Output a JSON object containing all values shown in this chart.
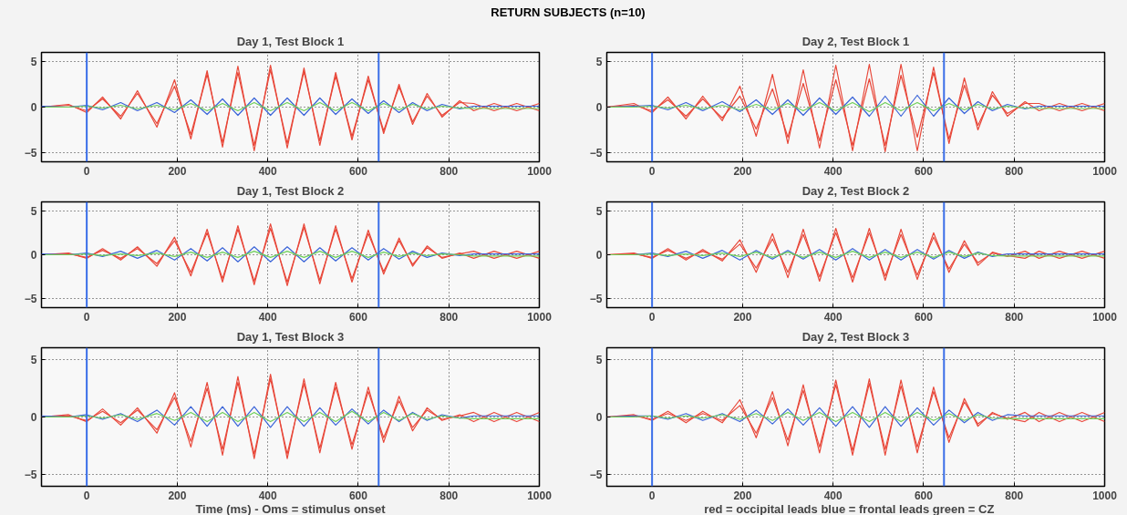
{
  "chart_data": [
    {
      "type": "line",
      "title": "Day 1, Test Block 1",
      "annotations": [
        "RETURN SUBJECTS (n=10)"
      ],
      "xlim": [
        -100,
        1000
      ],
      "ylim": [
        -6,
        6
      ],
      "xticks": [
        0,
        200,
        400,
        600,
        800,
        1000
      ],
      "yticks": [
        -5,
        0,
        5
      ],
      "grid": true,
      "line_style": "solid",
      "ref_lines": [
        {
          "axis": "x",
          "value": 0,
          "color": "#3a6ee8"
        },
        {
          "axis": "x",
          "value": 645,
          "color": "#3a6ee8"
        }
      ],
      "x": [
        -100,
        -40,
        0,
        35,
        75,
        112,
        155,
        194,
        230,
        266,
        300,
        334,
        370,
        406,
        443,
        480,
        515,
        550,
        586,
        622,
        656,
        690,
        720,
        752,
        785,
        824,
        855,
        900,
        950,
        1000
      ],
      "series": [
        {
          "color": "#e8483a",
          "values": [
            0,
            0.3,
            -0.6,
            1.1,
            -1.3,
            1.8,
            -2.2,
            3.0,
            -3.5,
            4.0,
            -4.4,
            4.5,
            -4.8,
            4.6,
            -4.5,
            4.3,
            -4.2,
            3.8,
            -3.6,
            3.4,
            -2.9,
            2.5,
            -1.9,
            1.5,
            -1.1,
            0.7,
            -0.4,
            0.4,
            -0.4,
            0.4
          ]
        },
        {
          "color": "#e8483a",
          "values": [
            0,
            0.2,
            -0.4,
            0.9,
            -1.0,
            1.5,
            -1.8,
            2.3,
            -3.0,
            3.6,
            -3.9,
            3.8,
            -4.2,
            4.1,
            -4.0,
            3.9,
            -3.7,
            3.4,
            -3.2,
            3.0,
            -2.6,
            2.2,
            -1.6,
            1.2,
            -0.9,
            0.5,
            0.4,
            -0.4,
            0.4,
            -0.4
          ]
        },
        {
          "color": "#3a64d8",
          "values": [
            0.1,
            0,
            0.2,
            -0.3,
            0.5,
            -0.4,
            0.5,
            -0.6,
            0.8,
            -0.8,
            0.9,
            -0.9,
            1.0,
            -0.9,
            1.0,
            -0.9,
            1.0,
            -0.8,
            0.9,
            -0.7,
            0.7,
            -0.6,
            0.5,
            -0.4,
            0.3,
            -0.2,
            0.1,
            0.1,
            0.1,
            0.1
          ]
        },
        {
          "color": "#6fcf5a",
          "values": [
            0,
            0,
            0.1,
            -0.1,
            0.2,
            -0.2,
            0.2,
            -0.3,
            0.4,
            -0.4,
            0.4,
            -0.4,
            0.5,
            -0.4,
            0.5,
            -0.4,
            0.5,
            -0.4,
            0.5,
            -0.4,
            0.4,
            -0.3,
            0.3,
            -0.2,
            0.1,
            -0.1,
            -0.15,
            -0.15,
            -0.15,
            -0.15
          ]
        }
      ]
    },
    {
      "type": "line",
      "title": "Day 2, Test Block 1",
      "xlim": [
        -100,
        1000
      ],
      "ylim": [
        -6,
        6
      ],
      "xticks": [
        0,
        200,
        400,
        600,
        800,
        1000
      ],
      "yticks": [
        -5,
        0,
        5
      ],
      "grid": true,
      "line_style": "solid",
      "ref_lines": [
        {
          "axis": "x",
          "value": 0,
          "color": "#3a6ee8"
        },
        {
          "axis": "x",
          "value": 645,
          "color": "#3a6ee8"
        }
      ],
      "x": [
        -100,
        -40,
        0,
        35,
        75,
        112,
        155,
        194,
        230,
        266,
        300,
        334,
        370,
        406,
        443,
        480,
        515,
        550,
        586,
        622,
        656,
        690,
        720,
        752,
        785,
        824,
        855,
        900,
        950,
        1000
      ],
      "series": [
        {
          "color": "#e8483a",
          "values": [
            0,
            0.4,
            -0.6,
            1.1,
            -1.3,
            1.2,
            -1.5,
            2.3,
            -3.2,
            3.6,
            -4.0,
            4.1,
            -4.5,
            4.6,
            -4.8,
            4.7,
            -4.9,
            4.7,
            -4.8,
            4.4,
            -4.0,
            3.2,
            -2.5,
            1.7,
            -1.0,
            0.6,
            -0.4,
            0.4,
            -0.4,
            0.4
          ]
        },
        {
          "color": "#e8483a",
          "values": [
            0,
            0.2,
            -0.4,
            0.8,
            -1.0,
            0.9,
            -1.2,
            1.2,
            -2.4,
            2.0,
            -3.3,
            2.6,
            -3.7,
            3.0,
            -4.2,
            3.1,
            -4.2,
            3.5,
            -3.3,
            3.8,
            -3.5,
            2.4,
            -2.0,
            1.3,
            -0.7,
            0.4,
            0.4,
            -0.4,
            0.4,
            -0.4
          ]
        },
        {
          "color": "#3a64d8",
          "values": [
            0,
            0.1,
            0.2,
            -0.3,
            0.5,
            -0.4,
            0.6,
            -0.5,
            0.8,
            -0.8,
            0.8,
            -0.9,
            1.0,
            -0.8,
            1.1,
            -1.0,
            1.2,
            -1.0,
            1.3,
            -1.0,
            1.0,
            -0.7,
            0.6,
            -0.4,
            0.3,
            -0.2,
            0.1,
            0.1,
            0.1,
            0.1
          ]
        },
        {
          "color": "#6fcf5a",
          "values": [
            0,
            0,
            0.1,
            -0.1,
            0.2,
            -0.2,
            0.2,
            -0.3,
            0.3,
            -0.3,
            0.4,
            -0.4,
            0.5,
            -0.4,
            0.5,
            -0.5,
            0.5,
            -0.4,
            0.5,
            -0.4,
            0.4,
            -0.3,
            0.3,
            -0.2,
            0.1,
            -0.1,
            -0.15,
            -0.15,
            -0.15,
            -0.15
          ]
        }
      ]
    },
    {
      "type": "line",
      "title": "Day 1, Test Block 2",
      "xlim": [
        -100,
        1000
      ],
      "ylim": [
        -6,
        6
      ],
      "xticks": [
        0,
        200,
        400,
        600,
        800,
        1000
      ],
      "yticks": [
        -5,
        0,
        5
      ],
      "grid": true,
      "line_style": "solid",
      "ref_lines": [
        {
          "axis": "x",
          "value": 0,
          "color": "#3a6ee8"
        },
        {
          "axis": "x",
          "value": 645,
          "color": "#3a6ee8"
        }
      ],
      "x": [
        -100,
        -40,
        0,
        35,
        75,
        112,
        155,
        194,
        230,
        266,
        300,
        334,
        370,
        406,
        443,
        480,
        515,
        550,
        586,
        622,
        656,
        690,
        720,
        752,
        785,
        824,
        855,
        900,
        950,
        1000
      ],
      "series": [
        {
          "color": "#e8483a",
          "values": [
            0,
            0.2,
            -0.4,
            0.7,
            -0.6,
            0.9,
            -1.3,
            2.0,
            -2.4,
            2.9,
            -3.1,
            3.3,
            -3.4,
            3.5,
            -3.5,
            3.5,
            -3.3,
            3.3,
            -3.1,
            2.8,
            -2.2,
            1.9,
            -1.3,
            1.0,
            -0.4,
            0.2,
            -0.4,
            0.4,
            -0.4,
            0.4
          ]
        },
        {
          "color": "#e8483a",
          "values": [
            0,
            0.1,
            -0.3,
            0.5,
            -0.4,
            0.7,
            -1.0,
            1.6,
            -2.0,
            2.5,
            -2.7,
            2.9,
            -3.0,
            3.0,
            -3.1,
            3.1,
            -2.9,
            2.9,
            -2.7,
            2.4,
            -1.9,
            1.6,
            -1.1,
            0.8,
            -0.3,
            0.1,
            0.4,
            -0.4,
            0.4,
            -0.4
          ]
        },
        {
          "color": "#3a64d8",
          "values": [
            0.1,
            0,
            0.2,
            -0.2,
            0.4,
            -0.4,
            0.5,
            -0.6,
            0.7,
            -0.7,
            0.8,
            -0.8,
            0.9,
            -0.8,
            0.9,
            -0.8,
            0.8,
            -0.7,
            0.8,
            -0.6,
            0.7,
            -0.5,
            0.4,
            -0.3,
            0.2,
            -0.1,
            0.1,
            0.1,
            0.1,
            0.1
          ]
        },
        {
          "color": "#6fcf5a",
          "values": [
            0,
            0,
            0.1,
            -0.1,
            0.1,
            -0.1,
            0.2,
            -0.2,
            0.3,
            -0.3,
            0.3,
            -0.3,
            0.4,
            -0.3,
            0.4,
            -0.3,
            0.4,
            -0.3,
            0.4,
            -0.3,
            0.3,
            -0.2,
            0.2,
            -0.1,
            0.1,
            0,
            -0.15,
            -0.15,
            -0.15,
            -0.15
          ]
        }
      ]
    },
    {
      "type": "line",
      "title": "Day 2, Test Block 2",
      "xlim": [
        -100,
        1000
      ],
      "ylim": [
        -6,
        6
      ],
      "xticks": [
        0,
        200,
        400,
        600,
        800,
        1000
      ],
      "yticks": [
        -5,
        0,
        5
      ],
      "grid": true,
      "line_style": "solid",
      "ref_lines": [
        {
          "axis": "x",
          "value": 0,
          "color": "#3a6ee8"
        },
        {
          "axis": "x",
          "value": 645,
          "color": "#3a6ee8"
        }
      ],
      "x": [
        -100,
        -40,
        0,
        35,
        75,
        112,
        155,
        194,
        230,
        266,
        300,
        334,
        370,
        406,
        443,
        480,
        515,
        550,
        586,
        622,
        656,
        690,
        720,
        752,
        785,
        824,
        855,
        900,
        950,
        1000
      ],
      "series": [
        {
          "color": "#e8483a",
          "values": [
            0,
            0.2,
            -0.4,
            0.7,
            -0.6,
            0.6,
            -0.7,
            1.7,
            -2.0,
            2.4,
            -2.6,
            2.9,
            -3.0,
            3.0,
            -3.1,
            3.0,
            -2.9,
            2.9,
            -2.8,
            2.5,
            -2.0,
            1.6,
            -1.2,
            0.3,
            -0.2,
            0.4,
            -0.4,
            0.4,
            -0.4,
            0.4
          ]
        },
        {
          "color": "#e8483a",
          "values": [
            0,
            0.1,
            -0.3,
            0.5,
            -0.4,
            0.4,
            -0.5,
            1.2,
            -1.5,
            1.8,
            -2.0,
            2.3,
            -2.5,
            2.5,
            -2.6,
            2.5,
            -2.4,
            2.3,
            -2.3,
            2.0,
            -1.6,
            1.2,
            -0.9,
            0.2,
            -0.1,
            -0.4,
            0.4,
            -0.4,
            0.4,
            -0.4
          ]
        },
        {
          "color": "#3a64d8",
          "values": [
            0,
            0,
            0.2,
            -0.2,
            0.4,
            -0.4,
            0.5,
            -0.6,
            0.5,
            -0.5,
            0.5,
            -0.5,
            0.6,
            -0.6,
            0.7,
            -0.6,
            0.6,
            -0.6,
            0.6,
            -0.5,
            0.5,
            -0.4,
            0.3,
            -0.2,
            0.1,
            0.1,
            0.1,
            0.1,
            0.1,
            0.1
          ]
        },
        {
          "color": "#6fcf5a",
          "values": [
            0,
            0,
            0.1,
            -0.1,
            0.1,
            -0.1,
            0.2,
            -0.2,
            0.3,
            -0.3,
            0.3,
            -0.3,
            0.3,
            -0.3,
            0.4,
            -0.3,
            0.3,
            -0.3,
            0.3,
            -0.3,
            0.3,
            -0.2,
            0.2,
            -0.1,
            -0.15,
            -0.15,
            -0.15,
            -0.15,
            -0.15,
            -0.15
          ]
        }
      ]
    },
    {
      "type": "line",
      "title": "Day 1, Test Block 3",
      "xlabel": "Time (ms) - Oms = stimulus onset",
      "xlim": [
        -100,
        1000
      ],
      "ylim": [
        -6,
        6
      ],
      "xticks": [
        0,
        200,
        400,
        600,
        800,
        1000
      ],
      "yticks": [
        -5,
        0,
        5
      ],
      "grid": true,
      "line_style": "solid",
      "ref_lines": [
        {
          "axis": "x",
          "value": 0,
          "color": "#3a6ee8"
        },
        {
          "axis": "x",
          "value": 645,
          "color": "#3a6ee8"
        }
      ],
      "x": [
        -100,
        -40,
        0,
        35,
        75,
        112,
        155,
        194,
        230,
        266,
        300,
        334,
        370,
        406,
        443,
        480,
        515,
        550,
        586,
        622,
        656,
        690,
        720,
        752,
        785,
        824,
        855,
        900,
        950,
        1000
      ],
      "series": [
        {
          "color": "#e8483a",
          "values": [
            0,
            0.2,
            -0.4,
            0.7,
            -0.7,
            0.8,
            -1.4,
            2.1,
            -2.6,
            3.0,
            -3.3,
            3.5,
            -3.6,
            3.7,
            -3.6,
            3.3,
            -3.1,
            3.0,
            -2.8,
            2.6,
            -2.2,
            1.8,
            -1.2,
            0.8,
            -0.3,
            0.2,
            -0.4,
            0.4,
            -0.4,
            0.4
          ]
        },
        {
          "color": "#e8483a",
          "values": [
            0,
            0.1,
            -0.3,
            0.5,
            -0.5,
            0.6,
            -1.1,
            1.7,
            -2.1,
            2.5,
            -2.8,
            3.0,
            -3.2,
            3.3,
            -3.2,
            2.9,
            -2.7,
            2.6,
            -2.4,
            2.2,
            -1.8,
            1.4,
            -0.9,
            0.6,
            -0.2,
            0.1,
            0.4,
            -0.4,
            0.4,
            -0.4
          ]
        },
        {
          "color": "#3a64d8",
          "values": [
            0.1,
            0,
            0.2,
            -0.2,
            0.3,
            -0.4,
            0.6,
            -0.7,
            0.9,
            -0.8,
            0.9,
            -0.8,
            0.9,
            -0.9,
            0.9,
            -0.8,
            0.8,
            -0.7,
            0.7,
            -0.6,
            0.6,
            -0.4,
            0.4,
            -0.3,
            0.2,
            -0.1,
            0.1,
            0.1,
            0.1,
            0.1
          ]
        },
        {
          "color": "#6fcf5a",
          "values": [
            0,
            0,
            0.1,
            -0.1,
            0.2,
            -0.2,
            0.3,
            -0.3,
            0.4,
            -0.4,
            0.4,
            -0.4,
            0.4,
            -0.4,
            0.4,
            -0.4,
            0.4,
            -0.4,
            0.5,
            -0.4,
            0.4,
            -0.3,
            0.3,
            -0.2,
            0.1,
            -0.1,
            -0.15,
            -0.15,
            -0.15,
            -0.15
          ]
        }
      ]
    },
    {
      "type": "line",
      "title": "Day 2, Test Block 3",
      "xlabel": "red = occipital leads   blue = frontal leads   green = CZ",
      "xlim": [
        -100,
        1000
      ],
      "ylim": [
        -6,
        6
      ],
      "xticks": [
        0,
        200,
        400,
        600,
        800,
        1000
      ],
      "yticks": [
        -5,
        0,
        5
      ],
      "grid": true,
      "line_style": "solid",
      "ref_lines": [
        {
          "axis": "x",
          "value": 0,
          "color": "#3a6ee8"
        },
        {
          "axis": "x",
          "value": 645,
          "color": "#3a6ee8"
        }
      ],
      "x": [
        -100,
        -40,
        0,
        35,
        75,
        112,
        155,
        194,
        230,
        266,
        300,
        334,
        370,
        406,
        443,
        480,
        515,
        550,
        586,
        622,
        656,
        690,
        720,
        752,
        785,
        824,
        855,
        900,
        950,
        1000
      ],
      "series": [
        {
          "color": "#e8483a",
          "values": [
            0,
            0.2,
            -0.3,
            0.5,
            -0.5,
            0.5,
            -0.5,
            1.5,
            -1.8,
            2.2,
            -2.5,
            2.8,
            -3.1,
            3.2,
            -3.3,
            3.3,
            -3.3,
            3.2,
            -3.1,
            2.6,
            -2.2,
            1.6,
            -0.8,
            0.4,
            -0.2,
            0.4,
            -0.4,
            0.4,
            -0.4,
            0.4
          ]
        },
        {
          "color": "#e8483a",
          "values": [
            0,
            0.1,
            -0.2,
            0.3,
            -0.3,
            0.3,
            -0.3,
            1.0,
            -1.4,
            1.7,
            -2.0,
            2.3,
            -2.6,
            2.8,
            -2.9,
            2.9,
            -2.8,
            2.7,
            -2.6,
            2.2,
            -1.8,
            1.3,
            -0.6,
            0.3,
            -0.1,
            -0.4,
            0.4,
            -0.4,
            0.4,
            -0.4
          ]
        },
        {
          "color": "#3a64d8",
          "values": [
            0,
            0.1,
            0.1,
            -0.2,
            0.3,
            -0.3,
            0.3,
            -0.4,
            0.6,
            -0.6,
            0.7,
            -0.7,
            0.8,
            -0.8,
            0.9,
            -0.9,
            0.9,
            -0.8,
            0.8,
            -0.7,
            0.6,
            -0.5,
            0.4,
            -0.3,
            0.2,
            0.1,
            0.1,
            0.1,
            0.1,
            0.1
          ]
        },
        {
          "color": "#6fcf5a",
          "values": [
            0,
            0,
            0.1,
            -0.1,
            0.1,
            -0.1,
            0.2,
            -0.2,
            0.3,
            -0.3,
            0.4,
            -0.3,
            0.4,
            -0.4,
            0.4,
            -0.4,
            0.4,
            -0.4,
            0.4,
            -0.3,
            0.3,
            -0.3,
            0.2,
            -0.1,
            -0.15,
            -0.15,
            -0.15,
            -0.15,
            -0.15,
            -0.15
          ]
        }
      ]
    }
  ]
}
